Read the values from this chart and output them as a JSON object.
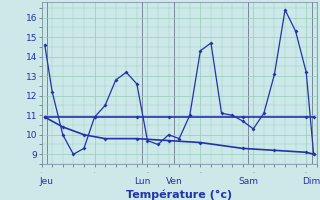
{
  "title": "Température (°c)",
  "bg_color": "#cce8e8",
  "grid_color": "#99ccbb",
  "line_color": "#2233aa",
  "ylim": [
    8.5,
    16.8
  ],
  "xlim": [
    0,
    26
  ],
  "yticks": [
    9,
    10,
    11,
    12,
    13,
    14,
    15,
    16
  ],
  "day_labels": [
    "Jeu",
    "Lun",
    "Ven",
    "Sam",
    "Dim"
  ],
  "day_x": [
    0.5,
    9.5,
    12.5,
    19.5,
    25.5
  ],
  "vline_x": [
    0.5,
    9.5,
    12.5,
    19.5,
    25.5
  ],
  "s1_x": [
    0.3,
    1,
    2,
    3,
    4,
    5,
    6,
    7,
    8,
    9,
    10,
    11,
    12,
    13,
    14,
    15,
    16,
    17,
    18,
    19,
    20,
    21,
    22,
    23,
    24,
    25,
    25.7
  ],
  "s1_y": [
    14.6,
    12.2,
    10.0,
    9.0,
    9.3,
    10.9,
    11.5,
    12.8,
    13.2,
    12.6,
    9.7,
    9.5,
    10.0,
    9.8,
    11.0,
    14.3,
    14.7,
    11.1,
    11.0,
    10.7,
    10.3,
    11.1,
    13.1,
    16.4,
    15.3,
    13.2,
    9.0
  ],
  "s2_x": [
    0.3,
    5,
    9,
    12,
    19,
    25,
    25.7
  ],
  "s2_y": [
    10.9,
    10.9,
    10.9,
    10.9,
    10.9,
    10.9,
    10.9
  ],
  "s3_x": [
    0.3,
    2,
    4,
    6,
    9,
    12,
    15,
    19,
    22,
    25,
    25.7
  ],
  "s3_y": [
    10.9,
    10.4,
    10.0,
    9.8,
    9.8,
    9.7,
    9.6,
    9.3,
    9.2,
    9.1,
    9.0
  ]
}
